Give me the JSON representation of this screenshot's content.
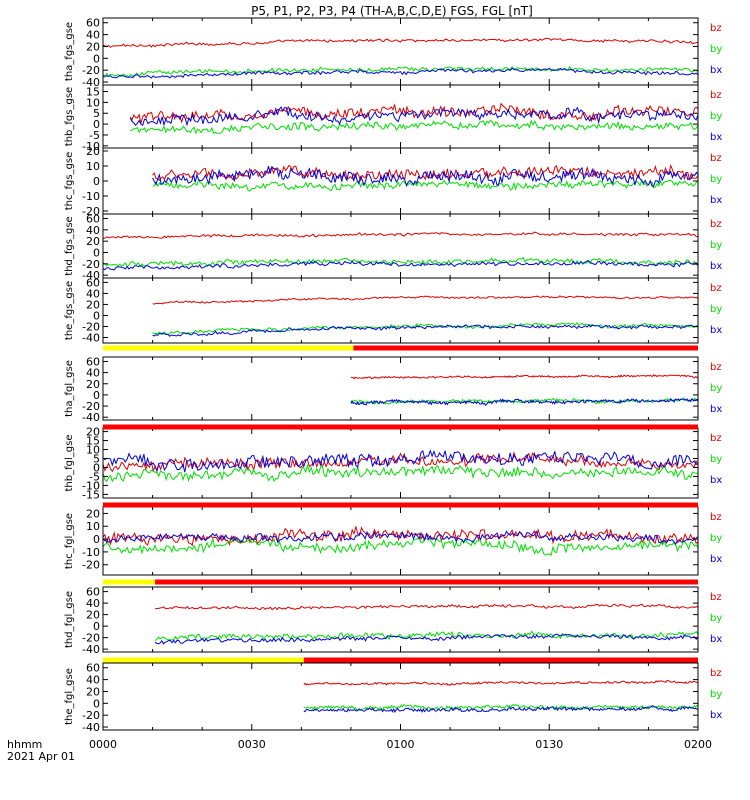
{
  "title": "P5, P1, P2, P3, P4 (TH-A,B,C,D,E) FGS, FGL [nT]",
  "footer": {
    "line1": "hhmm",
    "line2": "2021 Apr 01"
  },
  "colors": {
    "bz": "#e00000",
    "by": "#00e000",
    "bx": "#0000e0",
    "bar_yellow": "#ffff00",
    "bar_red": "#ff0000",
    "axis": "#000000"
  },
  "chart_data": {
    "type": "line",
    "x_ticks": [
      "0000",
      "0030",
      "0100",
      "0130",
      "0200"
    ],
    "x_range_minutes": [
      0,
      120
    ],
    "legend_labels": [
      "bz",
      "by",
      "bx"
    ],
    "panels": [
      {
        "ylabel": "tha_fgs_gse",
        "ylim": [
          -45,
          68
        ],
        "ticks": [
          60,
          40,
          20,
          0,
          -20,
          -40
        ],
        "start": 0,
        "series": [
          {
            "name": "bz",
            "base": 20,
            "amp": 4,
            "trend": 14
          },
          {
            "name": "by",
            "base": -28,
            "amp": 6,
            "trend": 12
          },
          {
            "name": "bx",
            "base": -32,
            "amp": 5,
            "trend": 14
          }
        ]
      },
      {
        "ylabel": "thb_fgs_gse",
        "ylim": [
          -11,
          18
        ],
        "ticks": [
          15,
          10,
          5,
          0,
          -5,
          -10
        ],
        "start": 5.5,
        "series": [
          {
            "name": "bz",
            "base": 2,
            "amp": 4,
            "trend": 5
          },
          {
            "name": "by",
            "base": -3,
            "amp": 3,
            "trend": 3
          },
          {
            "name": "bx",
            "base": 1,
            "amp": 4,
            "trend": 4
          }
        ]
      },
      {
        "ylabel": "thc_fgs_gse",
        "ylim": [
          -22,
          22
        ],
        "ticks": [
          20,
          10,
          0,
          -10,
          -20
        ],
        "start": 10,
        "series": [
          {
            "name": "bz",
            "base": 3,
            "amp": 6,
            "trend": 2
          },
          {
            "name": "by",
            "base": -3,
            "amp": 4,
            "trend": 1
          },
          {
            "name": "bx",
            "base": 2,
            "amp": 7,
            "trend": 1
          }
        ]
      },
      {
        "ylabel": "thd_fgs_gse",
        "ylim": [
          -45,
          68
        ],
        "ticks": [
          60,
          40,
          20,
          0,
          -20,
          -40
        ],
        "start": 0,
        "series": [
          {
            "name": "bz",
            "base": 25,
            "amp": 4,
            "trend": 10
          },
          {
            "name": "by",
            "base": -22,
            "amp": 8,
            "trend": 8
          },
          {
            "name": "bx",
            "base": -28,
            "amp": 6,
            "trend": 12
          }
        ]
      },
      {
        "ylabel": "the_fgs_gse",
        "ylim": [
          -50,
          68
        ],
        "ticks": [
          60,
          40,
          20,
          0,
          -20,
          -40
        ],
        "start": 10,
        "series": [
          {
            "name": "bz",
            "base": 22,
            "amp": 3,
            "trend": 14
          },
          {
            "name": "by",
            "base": -32,
            "amp": 5,
            "trend": 18
          },
          {
            "name": "bx",
            "base": -35,
            "amp": 5,
            "trend": 20
          }
        ]
      },
      {
        "ylabel": "tha_fgl_gse",
        "ylim": [
          -45,
          68
        ],
        "ticks": [
          60,
          40,
          20,
          0,
          -20,
          -40
        ],
        "start": 50,
        "series": [
          {
            "name": "bz",
            "base": 30,
            "amp": 3,
            "trend": 4
          },
          {
            "name": "by",
            "base": -12,
            "amp": 5,
            "trend": 2
          },
          {
            "name": "bx",
            "base": -14,
            "amp": 5,
            "trend": 3
          }
        ]
      },
      {
        "ylabel": "thb_fgl_gse",
        "ylim": [
          -17,
          22
        ],
        "ticks": [
          20,
          15,
          10,
          5,
          0,
          -5,
          -10,
          -15
        ],
        "start": 0,
        "series": [
          {
            "name": "bz",
            "base": 0,
            "amp": 5,
            "trend": 5
          },
          {
            "name": "by",
            "base": -5,
            "amp": 5,
            "trend": 3
          },
          {
            "name": "bx",
            "base": 2,
            "amp": 6,
            "trend": 4
          }
        ]
      },
      {
        "ylabel": "thc_fgl_gse",
        "ylim": [
          -28,
          25
        ],
        "ticks": [
          20,
          10,
          0,
          -10,
          -20
        ],
        "start": 0,
        "series": [
          {
            "name": "bz",
            "base": 0,
            "amp": 8,
            "trend": 4
          },
          {
            "name": "by",
            "base": -6,
            "amp": 7,
            "trend": 2
          },
          {
            "name": "bx",
            "base": 0,
            "amp": 5,
            "trend": 2
          }
        ]
      },
      {
        "ylabel": "thd_fgl_gse",
        "ylim": [
          -45,
          68
        ],
        "ticks": [
          60,
          40,
          20,
          0,
          -20,
          -40
        ],
        "start": 10.5,
        "series": [
          {
            "name": "bz",
            "base": 30,
            "amp": 4,
            "trend": 6
          },
          {
            "name": "by",
            "base": -22,
            "amp": 8,
            "trend": 8
          },
          {
            "name": "bx",
            "base": -28,
            "amp": 6,
            "trend": 12
          }
        ]
      },
      {
        "ylabel": "the_fgl_gse",
        "ylim": [
          -45,
          68
        ],
        "ticks": [
          60,
          40,
          20,
          0,
          -20,
          -40
        ],
        "start": 40.5,
        "series": [
          {
            "name": "bz",
            "base": 32,
            "amp": 3,
            "trend": 4
          },
          {
            "name": "by",
            "base": -8,
            "amp": 5,
            "trend": 2
          },
          {
            "name": "bx",
            "base": -12,
            "amp": 5,
            "trend": 3
          }
        ]
      }
    ],
    "mode_bars": [
      {
        "after_panel": 4,
        "yellow_until_min": 50.5
      },
      {
        "after_panel": 5,
        "yellow_until_min": 0
      },
      {
        "after_panel": 6,
        "yellow_until_min": 0
      },
      {
        "after_panel": 7,
        "yellow_until_min": 10.5
      },
      {
        "after_panel": 8,
        "yellow_until_min": 40.5
      }
    ]
  }
}
